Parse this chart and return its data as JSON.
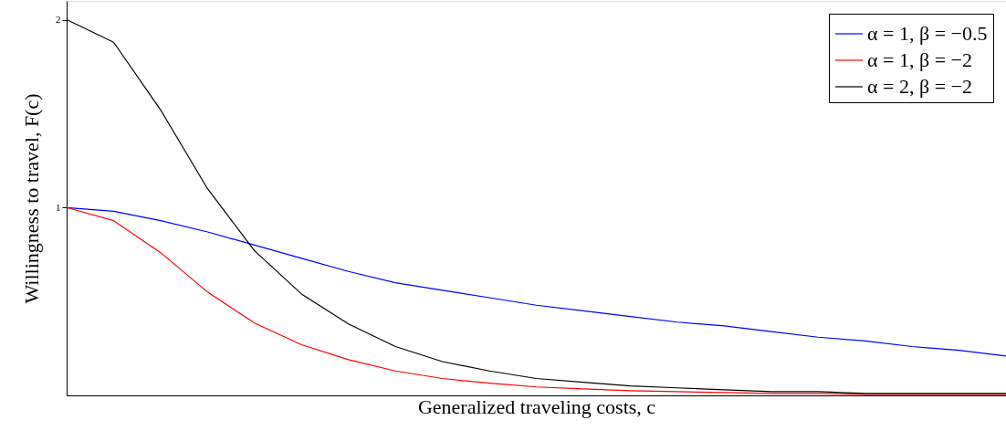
{
  "chart_data": {
    "type": "line",
    "xlabel": "Generalized traveling costs, c",
    "ylabel": "Willingness to travel, F(c)",
    "categories": [
      null,
      null,
      null,
      null,
      null,
      null,
      null,
      null,
      null,
      null,
      null,
      null,
      null,
      null,
      null,
      null,
      null,
      null,
      null,
      null,
      null
    ],
    "ylim": [
      0,
      2.1
    ],
    "yticks": [
      1,
      2
    ],
    "legend": "top right",
    "grid": false,
    "series": [
      {
        "name": "α = 1, β = −0.5",
        "color": "#0000ff",
        "values": [
          1.0,
          0.98,
          0.93,
          0.87,
          0.8,
          0.73,
          0.66,
          0.6,
          0.56,
          0.52,
          0.48,
          0.45,
          0.42,
          0.39,
          0.37,
          0.34,
          0.31,
          0.29,
          0.26,
          0.24,
          0.21
        ]
      },
      {
        "name": "α = 1, β = −2",
        "color": "#ff0000",
        "values": [
          1.0,
          0.93,
          0.76,
          0.55,
          0.385,
          0.27,
          0.19,
          0.13,
          0.09,
          0.065,
          0.045,
          0.035,
          0.025,
          0.02,
          0.015,
          0.01,
          0.01,
          0.005,
          0.005,
          0.005,
          0.005
        ]
      },
      {
        "name": "α = 2, β = −2",
        "color": "#000000",
        "values": [
          2.0,
          1.88,
          1.52,
          1.1,
          0.77,
          0.54,
          0.38,
          0.26,
          0.18,
          0.13,
          0.09,
          0.07,
          0.05,
          0.04,
          0.03,
          0.02,
          0.02,
          0.01,
          0.01,
          0.01,
          0.01
        ]
      }
    ]
  }
}
